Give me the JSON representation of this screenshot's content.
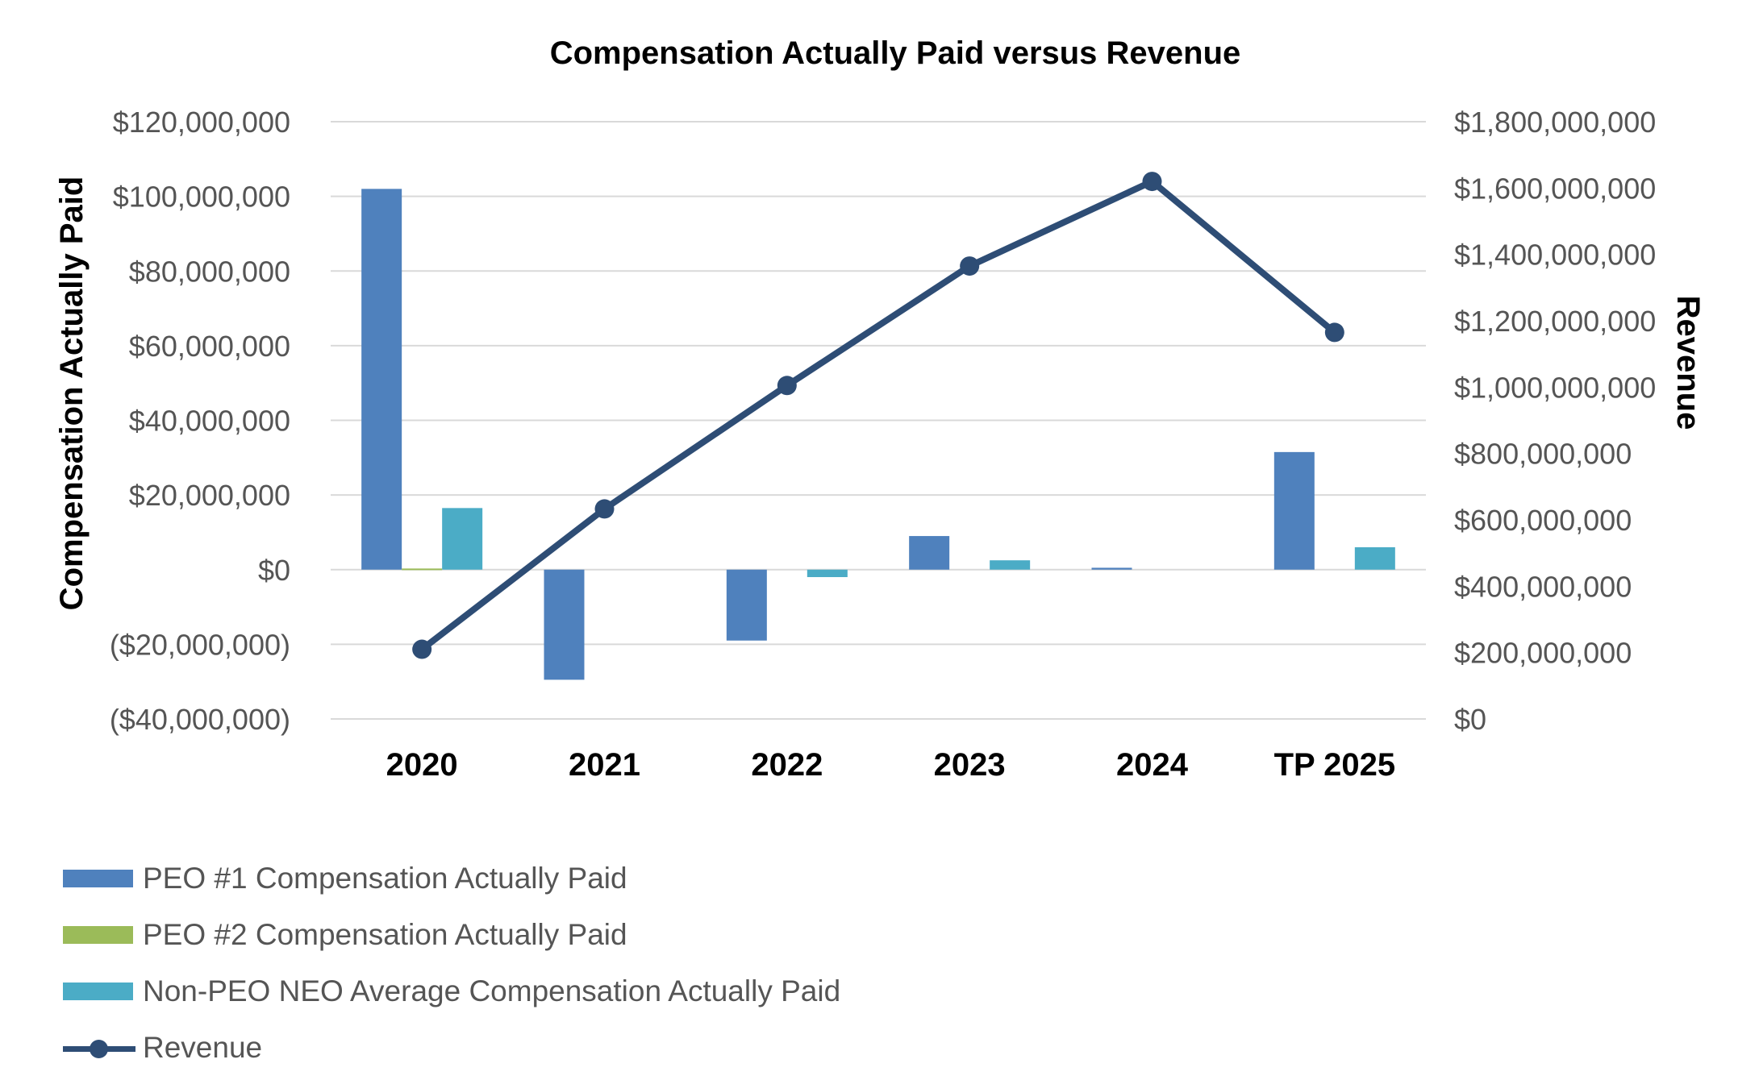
{
  "chart_data": {
    "type": "bar",
    "title": "Compensation Actually Paid versus Revenue",
    "ylabel": "Compensation Actually Paid",
    "y2label": "Revenue",
    "categories": [
      "2020",
      "2021",
      "2022",
      "2023",
      "2024",
      "TP 2025"
    ],
    "ylim": [
      -40000000,
      120000000
    ],
    "y2lim": [
      0,
      1800000000
    ],
    "yticks": [
      "$120,000,000",
      "$100,000,000",
      "$80,000,000",
      "$60,000,000",
      "$40,000,000",
      "$20,000,000",
      "$0",
      "($20,000,000)",
      "($40,000,000)"
    ],
    "y2ticks": [
      "$1,800,000,000",
      "$1,600,000,000",
      "$1,400,000,000",
      "$1,200,000,000",
      "$1,000,000,000",
      "$800,000,000",
      "$600,000,000",
      "$400,000,000",
      "$200,000,000",
      "$0"
    ],
    "grid": true,
    "legend_position": "bottom-left",
    "series": [
      {
        "name": "PEO #1 Compensation Actually Paid",
        "type": "bar",
        "axis": "left",
        "color": "#4F81BD",
        "values": [
          102000000,
          -29500000,
          -19000000,
          9000000,
          500000,
          31500000
        ]
      },
      {
        "name": "PEO #2 Compensation Actually Paid",
        "type": "bar",
        "axis": "left",
        "color": "#9BBB59",
        "values": [
          300000,
          0,
          0,
          0,
          0,
          0
        ]
      },
      {
        "name": "Non-PEO NEO Average Compensation Actually Paid",
        "type": "bar",
        "axis": "left",
        "color": "#4BACC6",
        "values": [
          16500000,
          0,
          -2000000,
          2500000,
          0,
          6000000
        ]
      },
      {
        "name": "Revenue",
        "type": "line",
        "axis": "right",
        "color": "#2E4D75",
        "values": [
          210000000,
          633000000,
          1005000000,
          1365000000,
          1620000000,
          1165000000
        ]
      }
    ]
  }
}
